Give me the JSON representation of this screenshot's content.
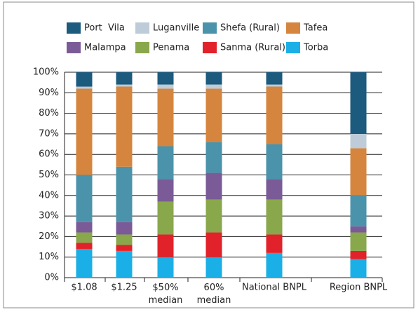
{
  "chart_data": {
    "type": "stacked_bar",
    "categories": [
      "$1.08",
      "$1.25",
      "$50%\nmedian",
      "60%\nmedian",
      "National BNPL",
      "Region BNPL"
    ],
    "series": [
      {
        "name": "Port  Vila",
        "color": "#1c5a7e",
        "values": [
          7,
          6,
          6,
          6,
          6,
          30
        ]
      },
      {
        "name": "Luganville",
        "color": "#bdccd8",
        "values": [
          1,
          1,
          2,
          2,
          1,
          7
        ]
      },
      {
        "name": "Shefa (Rural)",
        "color": "#4b93aa",
        "values": [
          23,
          27,
          16,
          15,
          17,
          15
        ]
      },
      {
        "name": "Tafea",
        "color": "#d5853d",
        "values": [
          42,
          39,
          28,
          26,
          28,
          23
        ]
      },
      {
        "name": "Malampa",
        "color": "#7a5b97",
        "values": [
          5,
          6,
          11,
          13,
          10,
          3
        ]
      },
      {
        "name": "Penama",
        "color": "#89a74b",
        "values": [
          5,
          5,
          16,
          16,
          17,
          9
        ]
      },
      {
        "name": "Sanma (Rural)",
        "color": "#e2222a",
        "values": [
          3,
          3,
          11,
          12,
          9,
          4
        ]
      },
      {
        "name": "Torba",
        "color": "#1aafe6",
        "values": [
          14,
          13,
          10,
          10,
          12,
          9
        ]
      }
    ],
    "ylim": [
      0,
      100
    ],
    "yticks": [
      {
        "value": 0,
        "label": "0%"
      },
      {
        "value": 10,
        "label": "10%"
      },
      {
        "value": 20,
        "label": "20%"
      },
      {
        "value": 30,
        "label": "30%"
      },
      {
        "value": 40,
        "label": "40%"
      },
      {
        "value": 50,
        "label": "50%"
      },
      {
        "value": 60,
        "label": "60%"
      },
      {
        "value": 70,
        "label": "70%"
      },
      {
        "value": 80,
        "label": "80%"
      },
      {
        "value": 90,
        "label": "90%"
      },
      {
        "value": 100,
        "label": "100%"
      }
    ],
    "grid": true
  }
}
